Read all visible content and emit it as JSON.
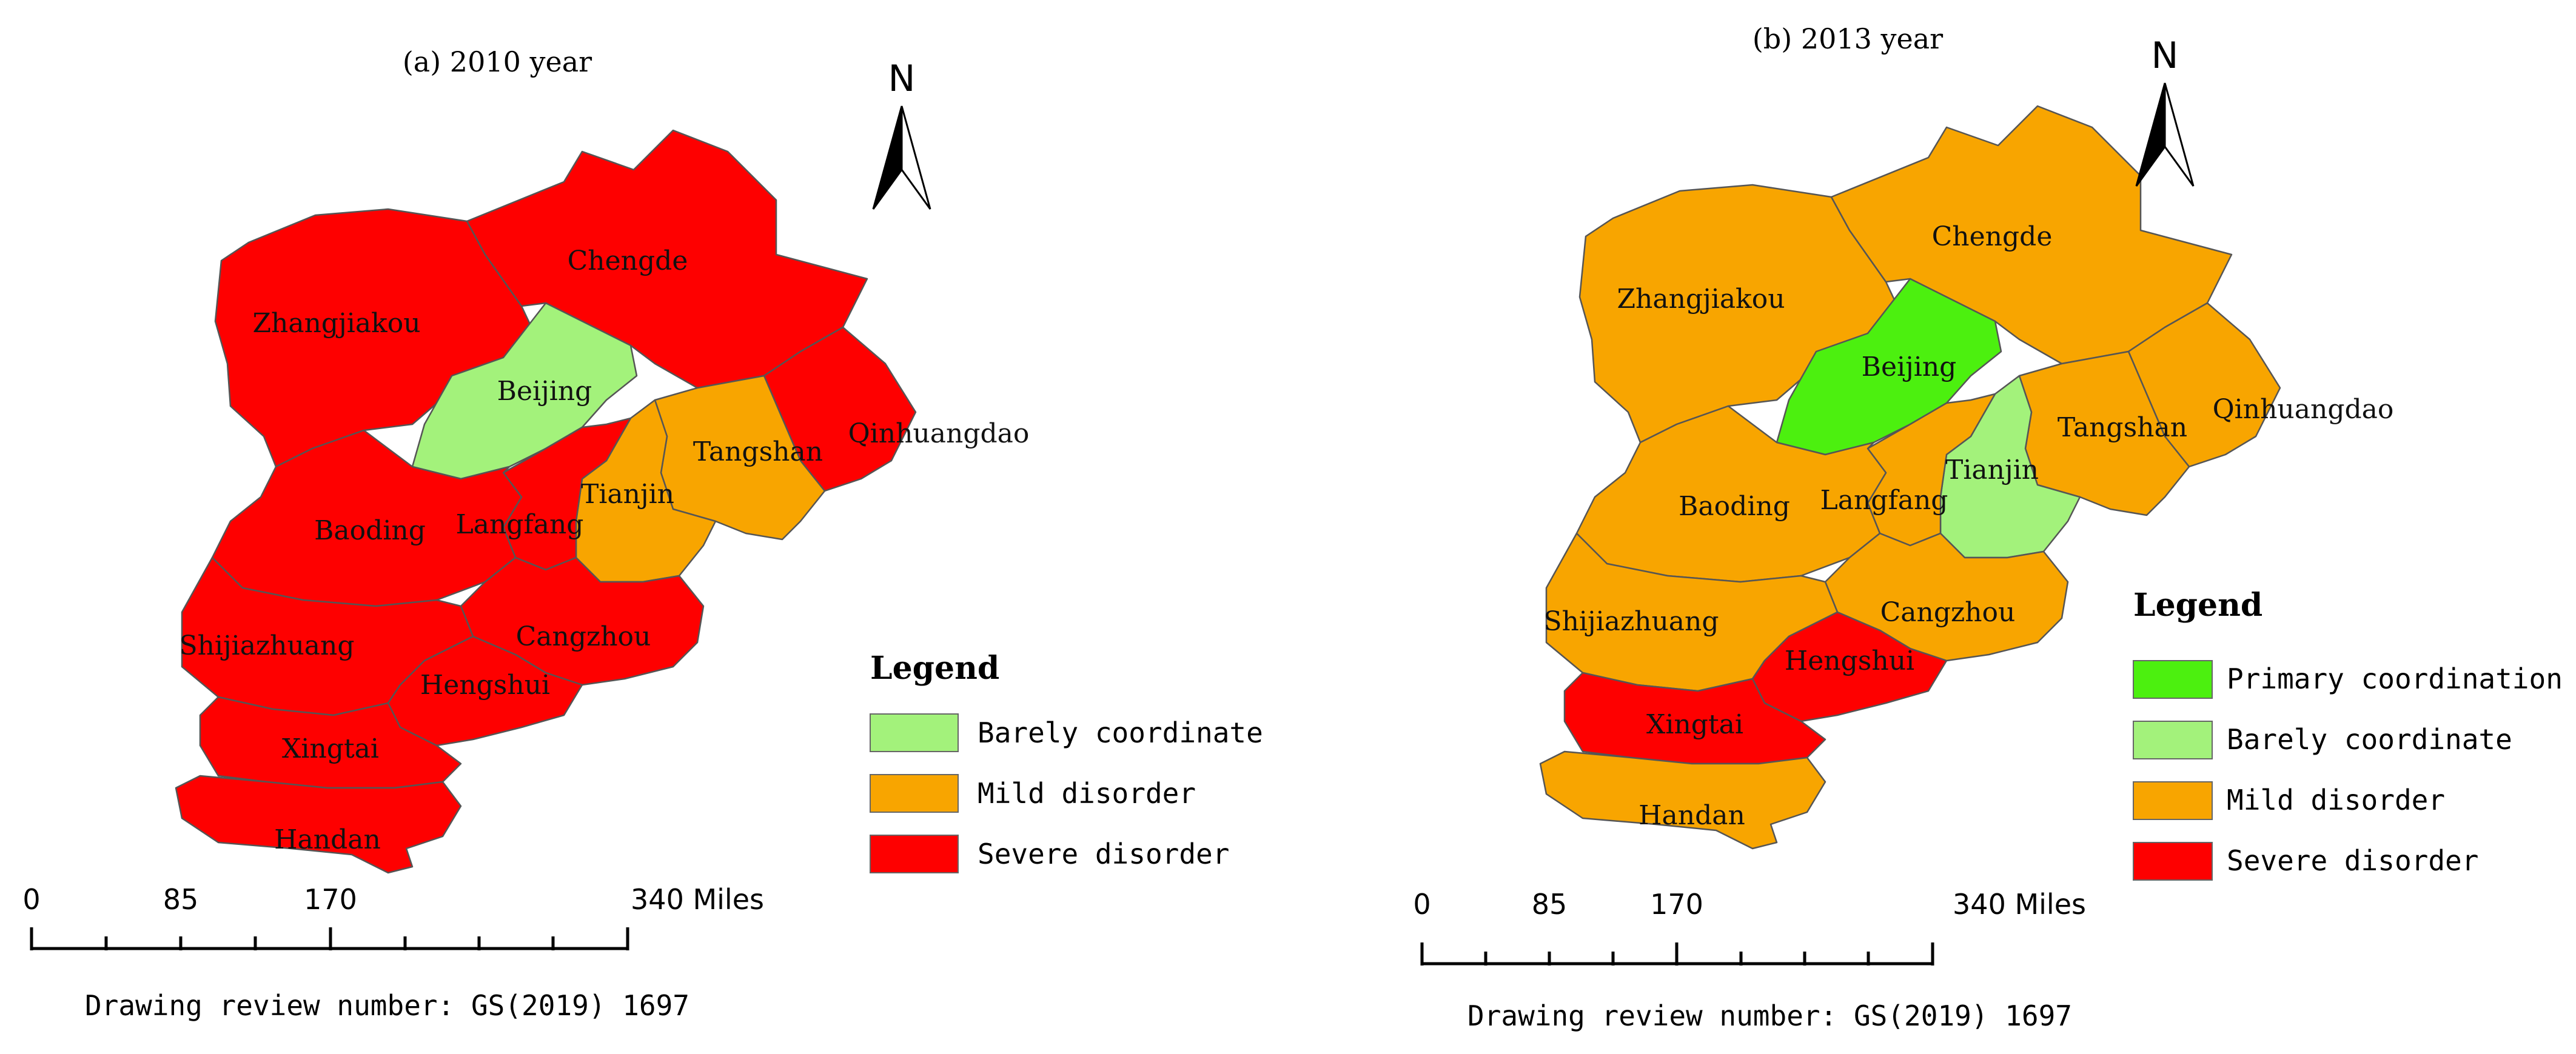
{
  "colors": {
    "primary_coordination": "#4cf00f",
    "barely_coordinate": "#a3f27b",
    "mild_disorder": "#f8a500",
    "severe_disorder": "#fe0000"
  },
  "maps": [
    {
      "title": "(a) 2010 year",
      "north_label": "N",
      "legend": {
        "heading": "Legend",
        "items": [
          {
            "label": "Barely coordinate",
            "class": "barely_coordinate"
          },
          {
            "label": "Mild disorder",
            "class": "mild_disorder"
          },
          {
            "label": "Severe disorder",
            "class": "severe_disorder"
          }
        ]
      },
      "scale": {
        "ticks": [
          "0",
          "85",
          "170",
          "340 Miles"
        ]
      },
      "review": "Drawing review number: GS(2019) 1697",
      "regions": {
        "zhangjiakou": {
          "label": "Zhangjiakou",
          "class": "severe_disorder"
        },
        "chengde": {
          "label": "Chengde",
          "class": "severe_disorder"
        },
        "beijing": {
          "label": "Beijing",
          "class": "barely_coordinate"
        },
        "qinhuangdao": {
          "label": "Qinhuangdao",
          "class": "severe_disorder"
        },
        "tangshan": {
          "label": "Tangshan",
          "class": "mild_disorder"
        },
        "tianjin": {
          "label": "Tianjin",
          "class": "mild_disorder"
        },
        "langfang": {
          "label": "Langfang",
          "class": "severe_disorder"
        },
        "baoding": {
          "label": "Baoding",
          "class": "severe_disorder"
        },
        "cangzhou": {
          "label": "Cangzhou",
          "class": "severe_disorder"
        },
        "shijiazhuang": {
          "label": "Shijiazhuang",
          "class": "severe_disorder"
        },
        "hengshui": {
          "label": "Hengshui",
          "class": "severe_disorder"
        },
        "xingtai": {
          "label": "Xingtai",
          "class": "severe_disorder"
        },
        "handan": {
          "label": "Handan",
          "class": "severe_disorder"
        }
      }
    },
    {
      "title": "(b) 2013 year",
      "north_label": "N",
      "legend": {
        "heading": "Legend",
        "items": [
          {
            "label": "Primary coordination",
            "class": "primary_coordination"
          },
          {
            "label": "Barely coordinate",
            "class": "barely_coordinate"
          },
          {
            "label": "Mild disorder",
            "class": "mild_disorder"
          },
          {
            "label": "Severe disorder",
            "class": "severe_disorder"
          }
        ]
      },
      "scale": {
        "ticks": [
          "0",
          "85",
          "170",
          "340 Miles"
        ]
      },
      "review": "Drawing review number: GS(2019) 1697",
      "regions": {
        "zhangjiakou": {
          "label": "Zhangjiakou",
          "class": "mild_disorder"
        },
        "chengde": {
          "label": "Chengde",
          "class": "mild_disorder"
        },
        "beijing": {
          "label": "Beijing",
          "class": "primary_coordination"
        },
        "qinhuangdao": {
          "label": "Qinhuangdao",
          "class": "mild_disorder"
        },
        "tangshan": {
          "label": "Tangshan",
          "class": "mild_disorder"
        },
        "tianjin": {
          "label": "Tianjin",
          "class": "barely_coordinate"
        },
        "langfang": {
          "label": "Langfang",
          "class": "mild_disorder"
        },
        "baoding": {
          "label": "Baoding",
          "class": "mild_disorder"
        },
        "cangzhou": {
          "label": "Cangzhou",
          "class": "mild_disorder"
        },
        "shijiazhuang": {
          "label": "Shijiazhuang",
          "class": "mild_disorder"
        },
        "hengshui": {
          "label": "Hengshui",
          "class": "severe_disorder"
        },
        "xingtai": {
          "label": "Xingtai",
          "class": "severe_disorder"
        },
        "handan": {
          "label": "Handan",
          "class": "mild_disorder"
        }
      }
    }
  ]
}
